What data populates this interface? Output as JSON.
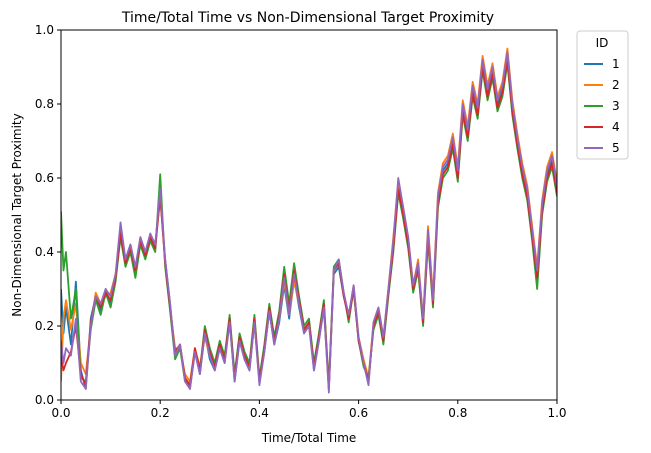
{
  "chart_data": {
    "type": "line",
    "title": "Time/Total Time vs Non-Dimensional Target Proximity",
    "xlabel": "Time/Total Time",
    "ylabel": "Non-Dimensional Target Proximity",
    "xlim": [
      0,
      1
    ],
    "ylim": [
      0,
      1
    ],
    "xticks": [
      "0.0",
      "0.2",
      "0.4",
      "0.6",
      "0.8",
      "1.0"
    ],
    "yticks": [
      "0.0",
      "0.2",
      "0.4",
      "0.6",
      "0.8",
      "1.0"
    ],
    "grid": false,
    "legend_title": "ID",
    "legend_position": "outside-top-right",
    "x": [
      0,
      0.005,
      0.01,
      0.02,
      0.03,
      0.04,
      0.05,
      0.06,
      0.07,
      0.08,
      0.09,
      0.1,
      0.11,
      0.12,
      0.13,
      0.14,
      0.15,
      0.16,
      0.17,
      0.18,
      0.19,
      0.2,
      0.21,
      0.22,
      0.23,
      0.24,
      0.25,
      0.26,
      0.27,
      0.28,
      0.29,
      0.3,
      0.31,
      0.32,
      0.33,
      0.34,
      0.35,
      0.36,
      0.37,
      0.38,
      0.39,
      0.4,
      0.41,
      0.42,
      0.43,
      0.44,
      0.45,
      0.46,
      0.47,
      0.48,
      0.49,
      0.5,
      0.51,
      0.52,
      0.53,
      0.54,
      0.55,
      0.56,
      0.57,
      0.58,
      0.59,
      0.6,
      0.61,
      0.62,
      0.63,
      0.64,
      0.65,
      0.66,
      0.67,
      0.68,
      0.69,
      0.7,
      0.71,
      0.72,
      0.73,
      0.74,
      0.75,
      0.76,
      0.77,
      0.78,
      0.79,
      0.8,
      0.81,
      0.82,
      0.83,
      0.84,
      0.85,
      0.86,
      0.87,
      0.88,
      0.89,
      0.9,
      0.91,
      0.92,
      0.93,
      0.94,
      0.95,
      0.96,
      0.97,
      0.98,
      0.99,
      1.0
    ],
    "series": [
      {
        "name": "1",
        "color": "#1f77b4",
        "values": [
          0.3,
          0.18,
          0.25,
          0.15,
          0.32,
          0.08,
          0.03,
          0.22,
          0.28,
          0.24,
          0.3,
          0.26,
          0.33,
          0.46,
          0.38,
          0.42,
          0.35,
          0.43,
          0.39,
          0.44,
          0.42,
          0.55,
          0.38,
          0.26,
          0.12,
          0.15,
          0.06,
          0.03,
          0.13,
          0.07,
          0.18,
          0.11,
          0.08,
          0.14,
          0.1,
          0.22,
          0.05,
          0.16,
          0.11,
          0.08,
          0.21,
          0.05,
          0.13,
          0.24,
          0.15,
          0.21,
          0.31,
          0.22,
          0.33,
          0.25,
          0.18,
          0.21,
          0.08,
          0.16,
          0.25,
          0.03,
          0.34,
          0.36,
          0.28,
          0.23,
          0.3,
          0.16,
          0.1,
          0.05,
          0.2,
          0.24,
          0.16,
          0.29,
          0.42,
          0.58,
          0.51,
          0.43,
          0.3,
          0.36,
          0.21,
          0.45,
          0.26,
          0.54,
          0.62,
          0.64,
          0.7,
          0.61,
          0.79,
          0.72,
          0.84,
          0.78,
          0.91,
          0.83,
          0.89,
          0.8,
          0.84,
          0.93,
          0.79,
          0.7,
          0.62,
          0.56,
          0.45,
          0.34,
          0.52,
          0.61,
          0.65,
          0.57
        ]
      },
      {
        "name": "2",
        "color": "#ff7f0e",
        "values": [
          0.05,
          0.22,
          0.27,
          0.19,
          0.26,
          0.1,
          0.07,
          0.2,
          0.29,
          0.26,
          0.28,
          0.29,
          0.34,
          0.45,
          0.37,
          0.41,
          0.34,
          0.44,
          0.4,
          0.43,
          0.41,
          0.56,
          0.37,
          0.25,
          0.14,
          0.14,
          0.07,
          0.05,
          0.14,
          0.09,
          0.17,
          0.12,
          0.09,
          0.15,
          0.11,
          0.21,
          0.06,
          0.17,
          0.12,
          0.09,
          0.22,
          0.06,
          0.14,
          0.25,
          0.16,
          0.22,
          0.32,
          0.23,
          0.32,
          0.26,
          0.19,
          0.2,
          0.09,
          0.17,
          0.26,
          0.04,
          0.35,
          0.37,
          0.29,
          0.22,
          0.31,
          0.17,
          0.11,
          0.06,
          0.21,
          0.25,
          0.17,
          0.3,
          0.44,
          0.59,
          0.52,
          0.44,
          0.31,
          0.38,
          0.22,
          0.47,
          0.28,
          0.56,
          0.64,
          0.66,
          0.72,
          0.63,
          0.81,
          0.74,
          0.86,
          0.8,
          0.93,
          0.85,
          0.91,
          0.82,
          0.86,
          0.95,
          0.81,
          0.72,
          0.64,
          0.58,
          0.47,
          0.36,
          0.54,
          0.63,
          0.67,
          0.59
        ]
      },
      {
        "name": "3",
        "color": "#2ca02c",
        "values": [
          0.51,
          0.35,
          0.4,
          0.22,
          0.3,
          0.06,
          0.05,
          0.19,
          0.27,
          0.23,
          0.29,
          0.25,
          0.32,
          0.44,
          0.36,
          0.4,
          0.33,
          0.42,
          0.38,
          0.43,
          0.4,
          0.61,
          0.36,
          0.24,
          0.11,
          0.14,
          0.05,
          0.04,
          0.13,
          0.08,
          0.2,
          0.14,
          0.1,
          0.16,
          0.12,
          0.23,
          0.07,
          0.18,
          0.13,
          0.1,
          0.23,
          0.06,
          0.15,
          0.26,
          0.17,
          0.24,
          0.36,
          0.26,
          0.37,
          0.28,
          0.2,
          0.22,
          0.1,
          0.18,
          0.27,
          0.04,
          0.36,
          0.38,
          0.29,
          0.21,
          0.3,
          0.16,
          0.09,
          0.06,
          0.19,
          0.23,
          0.15,
          0.28,
          0.4,
          0.56,
          0.49,
          0.41,
          0.29,
          0.35,
          0.2,
          0.43,
          0.25,
          0.52,
          0.6,
          0.62,
          0.68,
          0.59,
          0.77,
          0.7,
          0.82,
          0.76,
          0.89,
          0.81,
          0.87,
          0.78,
          0.82,
          0.91,
          0.77,
          0.68,
          0.6,
          0.54,
          0.43,
          0.3,
          0.5,
          0.59,
          0.63,
          0.55
        ]
      },
      {
        "name": "4",
        "color": "#d62728",
        "values": [
          0.12,
          0.08,
          0.1,
          0.13,
          0.2,
          0.07,
          0.04,
          0.21,
          0.28,
          0.25,
          0.29,
          0.27,
          0.33,
          0.45,
          0.37,
          0.41,
          0.35,
          0.43,
          0.39,
          0.44,
          0.41,
          0.55,
          0.37,
          0.25,
          0.13,
          0.15,
          0.06,
          0.04,
          0.14,
          0.08,
          0.19,
          0.13,
          0.09,
          0.15,
          0.11,
          0.22,
          0.06,
          0.17,
          0.12,
          0.09,
          0.22,
          0.05,
          0.14,
          0.25,
          0.16,
          0.23,
          0.34,
          0.24,
          0.35,
          0.27,
          0.19,
          0.21,
          0.09,
          0.17,
          0.26,
          0.03,
          0.35,
          0.37,
          0.28,
          0.22,
          0.3,
          0.16,
          0.1,
          0.05,
          0.2,
          0.24,
          0.16,
          0.29,
          0.41,
          0.57,
          0.5,
          0.42,
          0.3,
          0.36,
          0.21,
          0.44,
          0.26,
          0.53,
          0.61,
          0.63,
          0.69,
          0.6,
          0.78,
          0.71,
          0.83,
          0.77,
          0.9,
          0.82,
          0.88,
          0.79,
          0.83,
          0.92,
          0.78,
          0.69,
          0.61,
          0.55,
          0.44,
          0.33,
          0.51,
          0.6,
          0.64,
          0.56
        ]
      },
      {
        "name": "5",
        "color": "#9467bd",
        "values": [
          0.16,
          0.1,
          0.14,
          0.12,
          0.22,
          0.05,
          0.03,
          0.2,
          0.28,
          0.26,
          0.3,
          0.28,
          0.34,
          0.48,
          0.38,
          0.42,
          0.36,
          0.44,
          0.4,
          0.45,
          0.42,
          0.57,
          0.38,
          0.26,
          0.12,
          0.15,
          0.05,
          0.03,
          0.13,
          0.07,
          0.18,
          0.12,
          0.08,
          0.14,
          0.1,
          0.21,
          0.05,
          0.16,
          0.11,
          0.08,
          0.21,
          0.04,
          0.13,
          0.24,
          0.15,
          0.22,
          0.33,
          0.23,
          0.34,
          0.26,
          0.18,
          0.2,
          0.08,
          0.16,
          0.25,
          0.02,
          0.35,
          0.38,
          0.29,
          0.23,
          0.31,
          0.17,
          0.1,
          0.04,
          0.21,
          0.25,
          0.17,
          0.3,
          0.43,
          0.6,
          0.52,
          0.44,
          0.31,
          0.37,
          0.22,
          0.46,
          0.27,
          0.55,
          0.63,
          0.65,
          0.71,
          0.62,
          0.8,
          0.73,
          0.85,
          0.79,
          0.92,
          0.84,
          0.9,
          0.81,
          0.85,
          0.94,
          0.8,
          0.71,
          0.63,
          0.57,
          0.46,
          0.35,
          0.53,
          0.62,
          0.66,
          0.58
        ]
      }
    ]
  }
}
